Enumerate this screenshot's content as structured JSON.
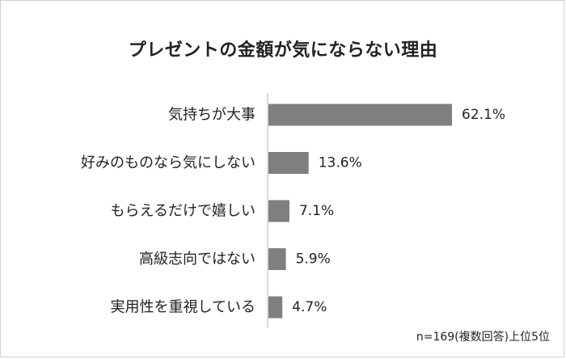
{
  "chart_data": {
    "type": "bar",
    "orientation": "horizontal",
    "title": "プレゼントの金額が気にならない理由",
    "categories": [
      "気持ちが大事",
      "好みのものなら気にしない",
      "もらえるだけで嬉しい",
      "高級志向ではない",
      "実用性を重視している"
    ],
    "values": [
      62.1,
      13.6,
      7.1,
      5.9,
      4.7
    ],
    "value_labels": [
      "62.1%",
      "13.6%",
      "7.1%",
      "5.9%",
      "4.7%"
    ],
    "unit": "%",
    "xlim": [
      0,
      100
    ],
    "grid": false,
    "bar_color": "#7f7f7f",
    "note": "n=169(複数回答)上位5位"
  }
}
